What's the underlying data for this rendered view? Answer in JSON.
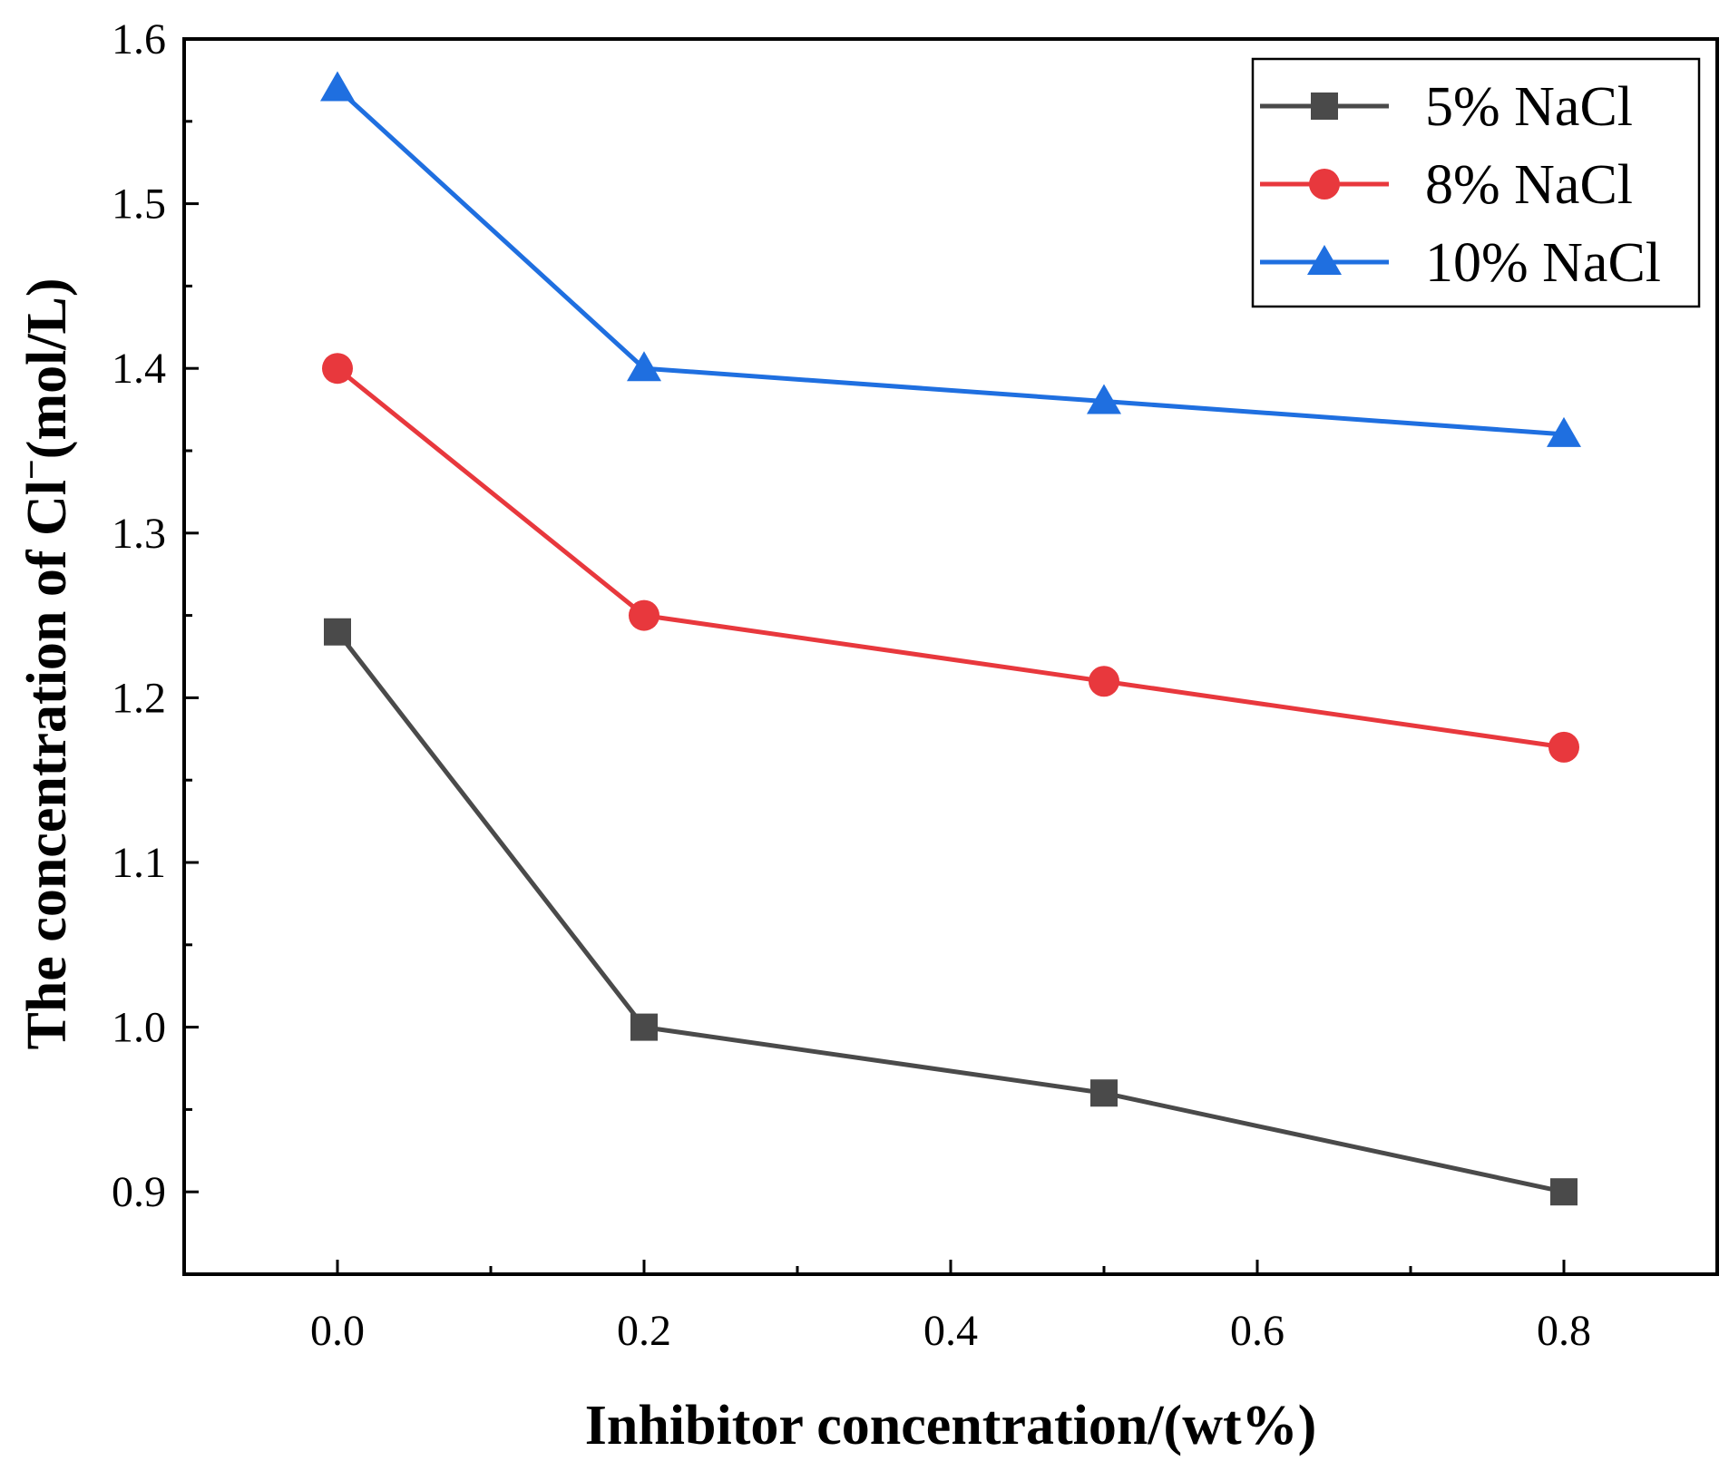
{
  "chart_data": {
    "type": "line",
    "xlabel": "Inhibitor concentration/(wt%)",
    "ylabel_main": "The concentration of Cl",
    "ylabel_sup": "−",
    "ylabel_unit": "(mol/L)",
    "xlim": [
      -0.1,
      0.9
    ],
    "ylim": [
      0.85,
      1.6
    ],
    "x_ticks": [
      0.0,
      0.2,
      0.4,
      0.6,
      0.8
    ],
    "x_tick_labels": [
      "0.0",
      "0.2",
      "0.4",
      "0.6",
      "0.8"
    ],
    "x_minor_ticks": [
      -0.1,
      0.1,
      0.3,
      0.5,
      0.7,
      0.9
    ],
    "y_ticks": [
      0.9,
      1.0,
      1.1,
      1.2,
      1.3,
      1.4,
      1.5,
      1.6
    ],
    "y_tick_labels": [
      "0.9",
      "1.0",
      "1.1",
      "1.2",
      "1.3",
      "1.4",
      "1.5",
      "1.6"
    ],
    "y_minor_ticks": [
      0.95,
      1.05,
      1.15,
      1.25,
      1.35,
      1.45,
      1.55
    ],
    "legend_position": "top-right",
    "x": [
      0.0,
      0.2,
      0.5,
      0.8
    ],
    "series": [
      {
        "name": "5% NaCl",
        "values": [
          1.24,
          1.0,
          0.96,
          0.9
        ],
        "color": "#4a4a4a",
        "marker": "square"
      },
      {
        "name": "8% NaCl",
        "values": [
          1.4,
          1.25,
          1.21,
          1.17
        ],
        "color": "#e8383d",
        "marker": "circle"
      },
      {
        "name": "10% NaCl",
        "values": [
          1.57,
          1.4,
          1.38,
          1.36
        ],
        "color": "#1f6fe0",
        "marker": "triangle"
      }
    ]
  }
}
